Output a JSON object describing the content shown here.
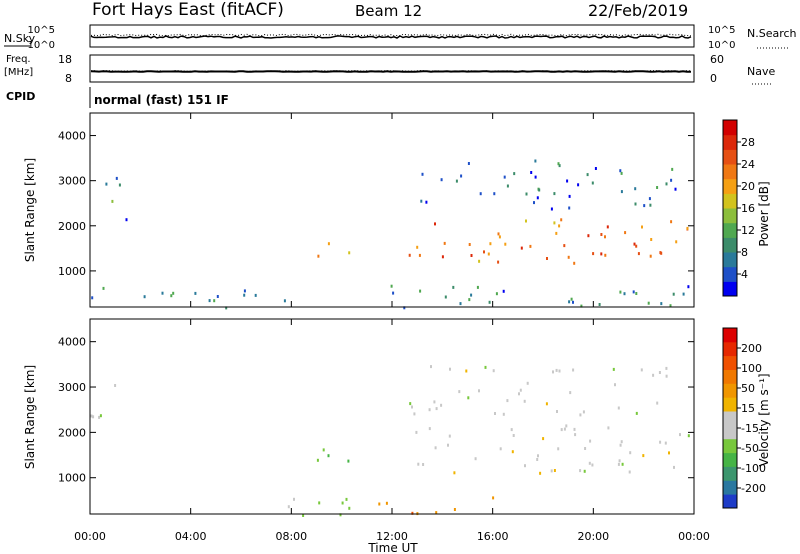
{
  "header": {
    "title": "Fort Hays East (fitACF)",
    "beam": "Beam 12",
    "date": "22/Feb/2019"
  },
  "panels": {
    "nsky_label": "N.Sky",
    "nsearch_label": "N.Search",
    "noise_ticks_left": [
      "10^5",
      "10^0"
    ],
    "noise_ticks_right": [
      "10^5",
      "10^0"
    ],
    "freq_label_1": "Freq.",
    "freq_label_2": "[MHz]",
    "freq_ticks": [
      "18",
      "8"
    ],
    "nave_label": "Nave",
    "nave_ticks": [
      "60",
      "0"
    ],
    "cpid_label": "CPID",
    "cpid_text": "normal (fast) 151 IF"
  },
  "colorbars": {
    "power": {
      "label": "Power [dB]",
      "ticks": [
        "4",
        "8",
        "12",
        "16",
        "20",
        "24",
        "28"
      ],
      "colors": [
        "#0000f0",
        "#1e50c8",
        "#2a7a9a",
        "#3c8c6a",
        "#50a850",
        "#8cbe3c",
        "#d2c31e",
        "#f5a014",
        "#f07814",
        "#e65014",
        "#dc280a",
        "#d20000"
      ]
    },
    "velocity": {
      "label": "Velocity [m s⁻¹]",
      "ticks": [
        "200",
        "100",
        "50",
        "15",
        "-15",
        "-50",
        "-100",
        "-200"
      ],
      "colors": [
        "#1e3cc8",
        "#2a78a0",
        "#3c966e",
        "#46b446",
        "#78c83c",
        "#c8c8c8",
        "#c8c8c8",
        "#f0b400",
        "#f09600",
        "#f07800",
        "#f05000",
        "#e62800",
        "#dc0000"
      ]
    }
  },
  "chart_data": [
    {
      "type": "heatmap",
      "name": "power",
      "ylabel": "Slant Range [km]",
      "yticks": [
        "1000",
        "2000",
        "3000",
        "4000"
      ],
      "ylim": [
        200,
        4500
      ],
      "xlim": [
        0,
        24
      ],
      "xticks": [
        "00:00",
        "04:00",
        "08:00",
        "12:00",
        "16:00",
        "20:00",
        "00:00"
      ],
      "regions": [
        {
          "t0": 0.0,
          "t1": 1.3,
          "r0": 2300,
          "r1": 3200,
          "level": 8
        },
        {
          "t0": 1.3,
          "t1": 1.6,
          "r0": 1800,
          "r1": 2200,
          "level": 4
        },
        {
          "t0": 8.8,
          "t1": 10.3,
          "r0": 1200,
          "r1": 1700,
          "level": 20
        },
        {
          "t0": 12.6,
          "t1": 23.8,
          "r0": 1100,
          "r1": 2200,
          "level": 22
        },
        {
          "t0": 12.6,
          "t1": 23.3,
          "r0": 2400,
          "r1": 3500,
          "level": 6
        },
        {
          "t0": 0.0,
          "t1": 24.0,
          "r0": 200,
          "r1": 700,
          "level": 8
        }
      ]
    },
    {
      "type": "heatmap",
      "name": "velocity",
      "ylabel": "Slant Range [km]",
      "yticks": [
        "1000",
        "2000",
        "3000",
        "4000"
      ],
      "ylim": [
        200,
        4500
      ],
      "xlim": [
        0,
        24
      ],
      "xticks": [
        "00:00",
        "04:00",
        "08:00",
        "12:00",
        "16:00",
        "20:00",
        "00:00"
      ],
      "xlabel": "Time UT",
      "regions": [
        {
          "t0": 0.0,
          "t1": 1.3,
          "r0": 2300,
          "r1": 3200,
          "level": 0
        },
        {
          "t0": 8.8,
          "t1": 10.3,
          "r0": 1200,
          "r1": 1700,
          "level": 50
        },
        {
          "t0": 12.6,
          "t1": 23.8,
          "r0": 1100,
          "r1": 2200,
          "level": 0
        },
        {
          "t0": 12.6,
          "t1": 23.3,
          "r0": 2400,
          "r1": 3500,
          "level": 0
        },
        {
          "t0": 11.0,
          "t1": 16.0,
          "r0": 200,
          "r1": 600,
          "level": -60
        },
        {
          "t0": 6.0,
          "t1": 11.0,
          "r0": 200,
          "r1": 600,
          "level": 30
        }
      ]
    }
  ]
}
